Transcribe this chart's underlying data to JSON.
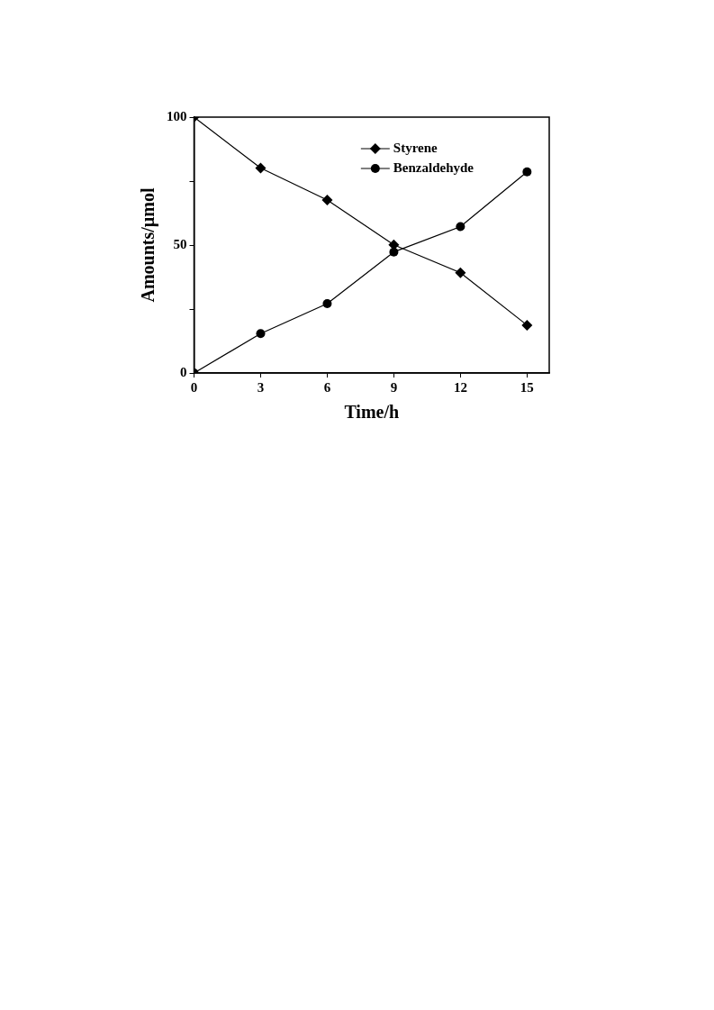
{
  "chart_data": {
    "type": "line",
    "xlabel": "Time/h",
    "ylabel": "Amounts/µmol",
    "x": [
      0,
      3,
      6,
      9,
      12,
      15
    ],
    "series": [
      {
        "name": "Styrene",
        "color": "#000000",
        "marker": "diamond",
        "values": [
          100,
          80.1,
          67.6,
          50.1,
          39.2,
          18.7
        ]
      },
      {
        "name": "Benzaldehyde",
        "color": "#000000",
        "marker": "circle",
        "values": [
          0,
          15.4,
          27.1,
          47.3,
          57.2,
          78.6
        ]
      }
    ],
    "xlim": [
      0,
      16
    ],
    "xticks": [
      0,
      3,
      6,
      9,
      12,
      15
    ],
    "ylim": [
      0,
      100
    ],
    "yticks": [
      0,
      {
        "value": 25,
        "label": null
      },
      50,
      {
        "value": 75,
        "label": null
      },
      100
    ],
    "grid": false,
    "legend": "top right",
    "line_style": "solid"
  }
}
